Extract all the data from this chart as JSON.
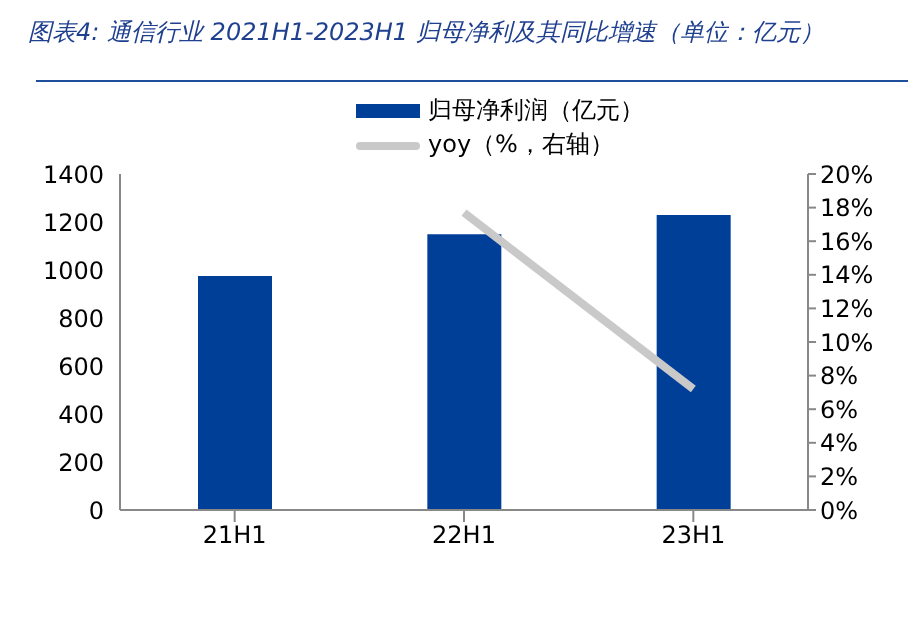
{
  "chart_data": {
    "type": "bar",
    "title": "图表4:  通信行业 2021H1-2023H1 归母净利及其同比增速（单位：亿元）",
    "categories": [
      "21H1",
      "22H1",
      "23H1"
    ],
    "series": [
      {
        "name": "归母净利润（亿元）",
        "color": "#003f98",
        "values": [
          975,
          1149,
          1229
        ]
      },
      {
        "name": "yoy（%，右轴）",
        "type": "line",
        "axis": "y2",
        "color": "#c9c9c9",
        "values": [
          null,
          17.7,
          7.2
        ]
      }
    ],
    "ylim": [
      0,
      1400
    ],
    "yticks": [
      0,
      200,
      400,
      600,
      800,
      1000,
      1200,
      1400
    ],
    "y2lim": [
      0,
      20
    ],
    "y2ticks": [
      {
        "value": 0,
        "label": "0%"
      },
      {
        "value": 2,
        "label": "2%"
      },
      {
        "value": 4,
        "label": "4%"
      },
      {
        "value": 6,
        "label": "6%"
      },
      {
        "value": 8,
        "label": "8%"
      },
      {
        "value": 10,
        "label": "10%"
      },
      {
        "value": 12,
        "label": "12%"
      },
      {
        "value": 14,
        "label": "14%"
      },
      {
        "value": 16,
        "label": "16%"
      },
      {
        "value": 18,
        "label": "18%"
      },
      {
        "value": 20,
        "label": "20%"
      }
    ],
    "grid": false,
    "legend": "top",
    "marker": "none"
  }
}
